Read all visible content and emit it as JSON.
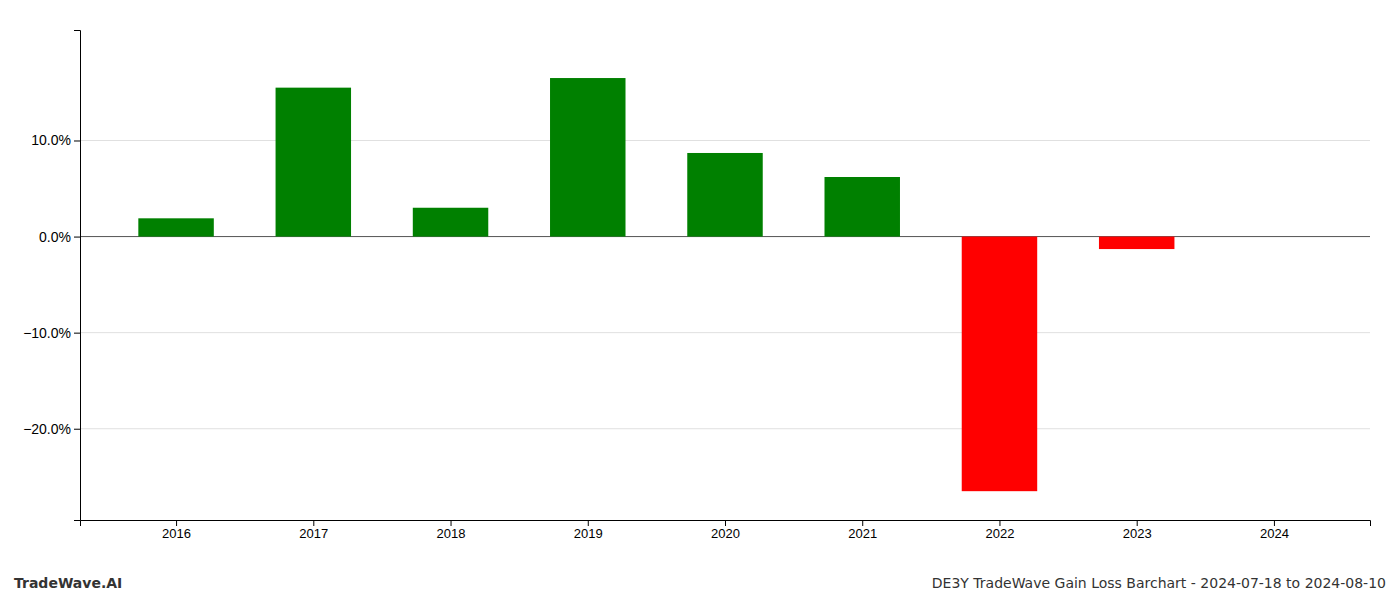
{
  "chart_data": {
    "type": "bar",
    "title": "DE3Y TradeWave Gain Loss Barchart - 2024-07-18 to 2024-08-10",
    "annotations": [
      "TradeWave.AI"
    ],
    "x": [
      2016,
      2017,
      2018,
      2019,
      2020,
      2021,
      2022,
      2023,
      2024
    ],
    "values": [
      0.019,
      0.155,
      0.03,
      0.165,
      0.087,
      0.062,
      -0.265,
      -0.013,
      null
    ],
    "colors": [
      "#008000",
      "#008000",
      "#008000",
      "#008000",
      "#008000",
      "#008000",
      "#ff0000",
      "#ff0000",
      null
    ],
    "xlim": [
      2015.3,
      2024.7
    ],
    "xticks": [
      2016,
      2017,
      2018,
      2019,
      2020,
      2021,
      2022,
      2023,
      2024
    ],
    "ylim": [
      -0.295,
      0.215
    ],
    "yticks": [
      {
        "value": -0.2,
        "label": "−20.0%"
      },
      {
        "value": -0.1,
        "label": "−10.0%"
      },
      {
        "value": 0.0,
        "label": "0.0%"
      },
      {
        "value": 0.1,
        "label": "10.0%"
      }
    ],
    "grid": true
  }
}
